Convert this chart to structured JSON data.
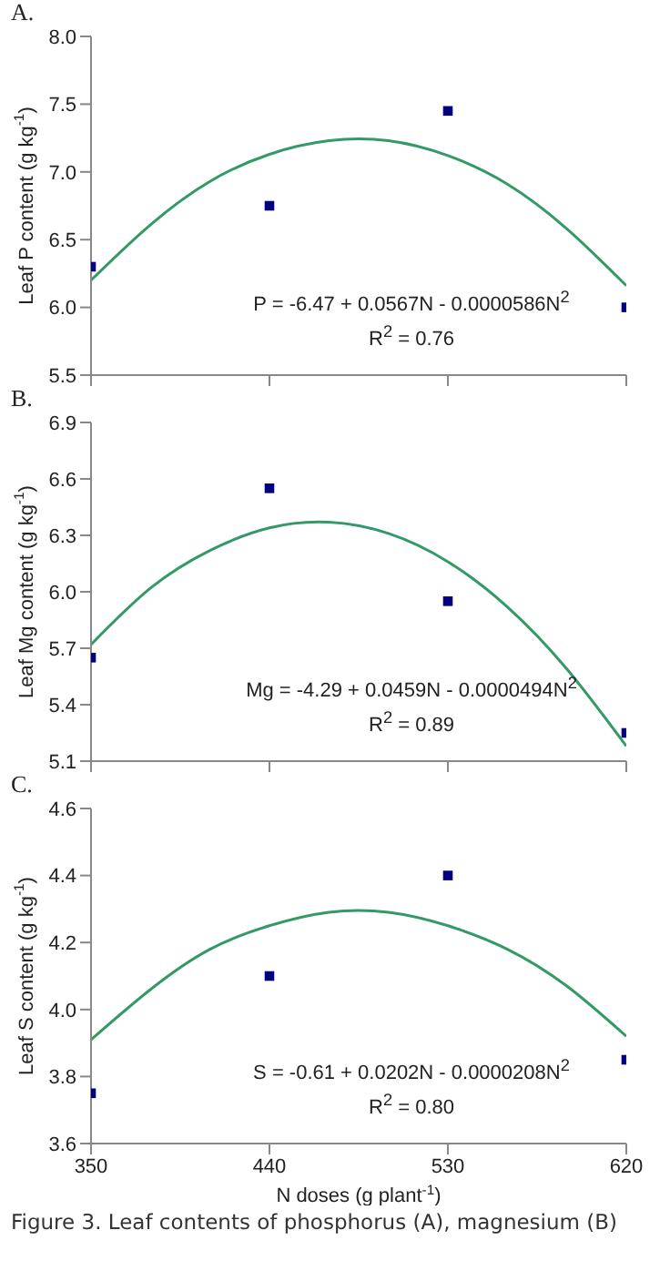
{
  "chart_data": [
    {
      "type": "scatter",
      "title": "A.",
      "ylabel": "Leaf P content (g kg$^{-1}$)",
      "xlim": [
        350,
        620
      ],
      "xticks": [
        350,
        440,
        530,
        620
      ],
      "ylim": [
        5.5,
        8.0
      ],
      "yticks": [
        {
          "value": 5.5,
          "label": "5.5"
        },
        {
          "value": 6.0,
          "label": "6.0"
        },
        {
          "value": 6.5,
          "label": "6.5"
        },
        {
          "value": 7.0,
          "label": "7.0"
        },
        {
          "value": 7.5,
          "label": "7.5"
        },
        {
          "value": 8.0,
          "label": "8.0"
        }
      ],
      "tick_labels": "y",
      "grid": false,
      "annotations": [
        "P = -6.47 + 0.0567N - 0.0000586N$^{2}$",
        "R$^{2}$ = 0.76"
      ],
      "series": [
        {
          "marker": "square",
          "color": "#000080",
          "x": [
            350,
            440,
            530,
            620
          ],
          "values": [
            6.3,
            6.75,
            7.45,
            6.0
          ]
        },
        {
          "type": "line",
          "marker": "none",
          "color": "#339966",
          "x": [
            350,
            380,
            410,
            440,
            470,
            500,
            530,
            560,
            590,
            620
          ],
          "values": [
            6.2,
            6.61,
            6.93,
            7.13,
            7.23,
            7.23,
            7.12,
            6.91,
            6.58,
            6.16
          ]
        }
      ]
    },
    {
      "type": "scatter",
      "title": "B.",
      "ylabel": "Leaf Mg content (g kg$^{-1}$)",
      "xlim": [
        350,
        620
      ],
      "xticks": [
        350,
        440,
        530,
        620
      ],
      "ylim": [
        5.1,
        6.9
      ],
      "yticks": [
        {
          "value": 5.1,
          "label": "5.1"
        },
        {
          "value": 5.4,
          "label": "5.4"
        },
        {
          "value": 5.7,
          "label": "5.7"
        },
        {
          "value": 6.0,
          "label": "6.0"
        },
        {
          "value": 6.3,
          "label": "6.3"
        },
        {
          "value": 6.6,
          "label": "6.6"
        },
        {
          "value": 6.9,
          "label": "6.9"
        }
      ],
      "tick_labels": "y",
      "grid": false,
      "annotations": [
        "Mg = -4.29 + 0.0459N - 0.0000494N$^{2}$",
        "R$^{2}$ = 0.89"
      ],
      "series": [
        {
          "marker": "square",
          "color": "#000080",
          "x": [
            350,
            440,
            530,
            620
          ],
          "values": [
            5.65,
            6.55,
            5.95,
            5.25
          ]
        },
        {
          "type": "line",
          "marker": "none",
          "color": "#339966",
          "x": [
            350,
            380,
            410,
            440,
            470,
            500,
            530,
            560,
            590,
            620
          ],
          "values": [
            5.72,
            6.02,
            6.22,
            6.34,
            6.37,
            6.31,
            6.16,
            5.92,
            5.59,
            5.18
          ]
        }
      ]
    },
    {
      "type": "scatter",
      "title": "C.",
      "xlabel": "N doses (g plant$^{-1}$)",
      "ylabel": "Leaf S content (g kg$^{-1}$)",
      "xlim": [
        350,
        620
      ],
      "xticks": [
        350,
        440,
        530,
        620
      ],
      "ylim": [
        3.6,
        4.6
      ],
      "yticks": [
        {
          "value": 3.6,
          "label": "3.6"
        },
        {
          "value": 3.8,
          "label": "3.8"
        },
        {
          "value": 4.0,
          "label": "4.0"
        },
        {
          "value": 4.2,
          "label": "4.2"
        },
        {
          "value": 4.4,
          "label": "4.4"
        },
        {
          "value": 4.6,
          "label": "4.6"
        }
      ],
      "grid": false,
      "annotations": [
        "S = -0.61 + 0.0202N - 0.0000208N$^{2}$",
        "R$^{2}$ = 0.80",
        "Figure 3.  Leaf contents of phosphorus (A), magnesium (B)"
      ],
      "series": [
        {
          "marker": "square",
          "color": "#000080",
          "x": [
            350,
            440,
            530,
            620
          ],
          "values": [
            3.75,
            4.1,
            4.4,
            3.85
          ]
        },
        {
          "type": "line",
          "marker": "none",
          "color": "#339966",
          "x": [
            350,
            380,
            410,
            440,
            470,
            500,
            530,
            560,
            590,
            620
          ],
          "values": [
            3.91,
            4.06,
            4.18,
            4.25,
            4.29,
            4.29,
            4.25,
            4.18,
            4.07,
            3.92
          ]
        }
      ]
    }
  ]
}
